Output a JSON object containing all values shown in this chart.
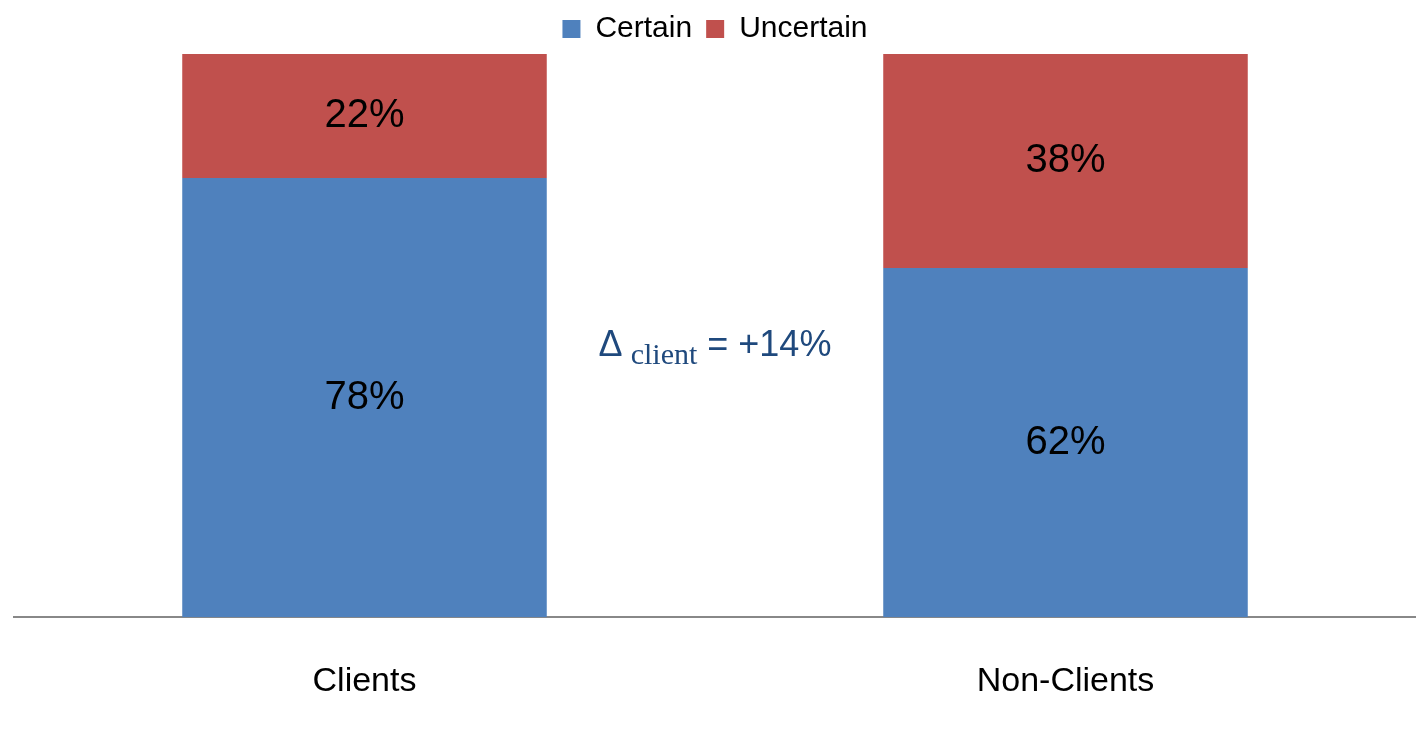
{
  "chart_data": {
    "type": "bar",
    "stacked": true,
    "categories": [
      "Clients",
      "Non-Clients"
    ],
    "series": [
      {
        "name": "Certain",
        "color": "#4f81bd",
        "values": [
          78,
          62
        ],
        "value_labels": [
          "78%",
          "62%"
        ]
      },
      {
        "name": "Uncertain",
        "color": "#c0504d",
        "values": [
          22,
          38
        ],
        "value_labels": [
          "22%",
          "38%"
        ]
      }
    ],
    "legend": "top",
    "grid": false,
    "annotations": [
      "Δ $_{client}$ = +14%"
    ]
  }
}
